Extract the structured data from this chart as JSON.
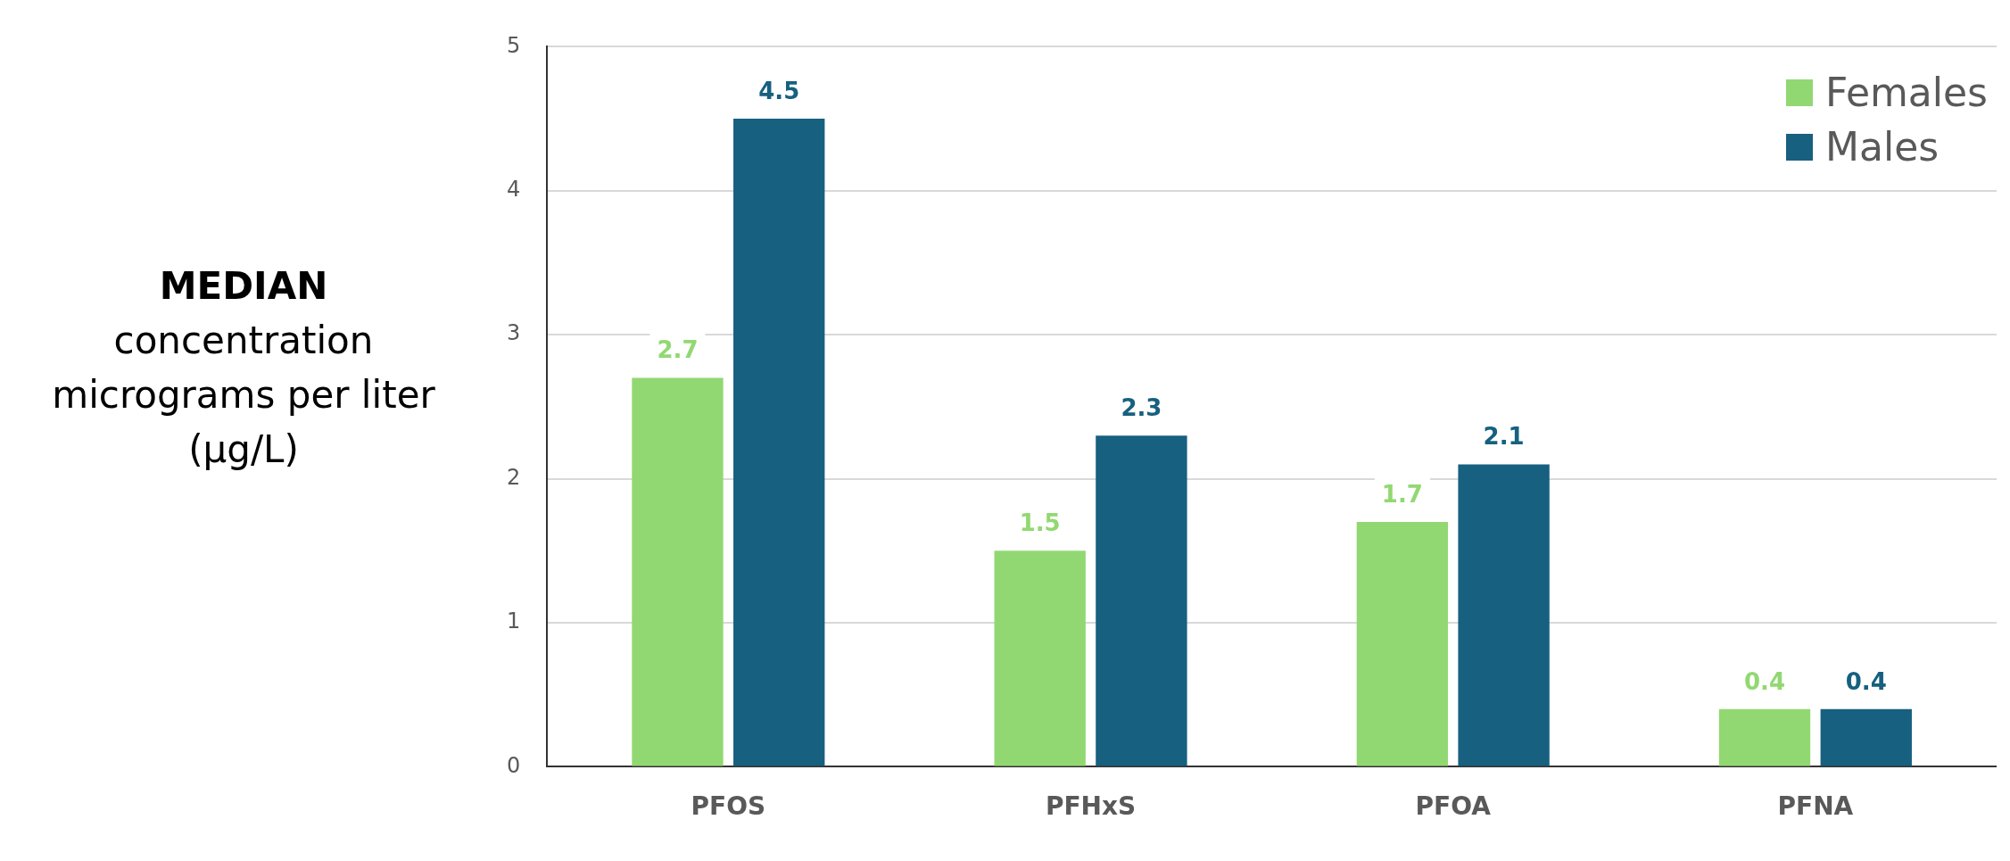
{
  "chart_data": {
    "type": "bar",
    "ylabel": "MEDIAN\nconcentration\nmicrograms per liter\n(µg/L)",
    "categories": [
      "PFOS",
      "PFHxS",
      "PFOA",
      "PFNA"
    ],
    "series": [
      {
        "name": "Females",
        "color": "#92d872",
        "values": [
          2.7,
          1.5,
          1.7,
          0.4
        ]
      },
      {
        "name": "Males",
        "color": "#17607f",
        "values": [
          4.5,
          2.3,
          2.1,
          0.4
        ]
      }
    ],
    "ylim": [
      0,
      5
    ],
    "yticks": [
      0,
      1,
      2,
      3,
      4,
      5
    ],
    "grid": "y",
    "legend": "top right",
    "data_labels": true
  }
}
